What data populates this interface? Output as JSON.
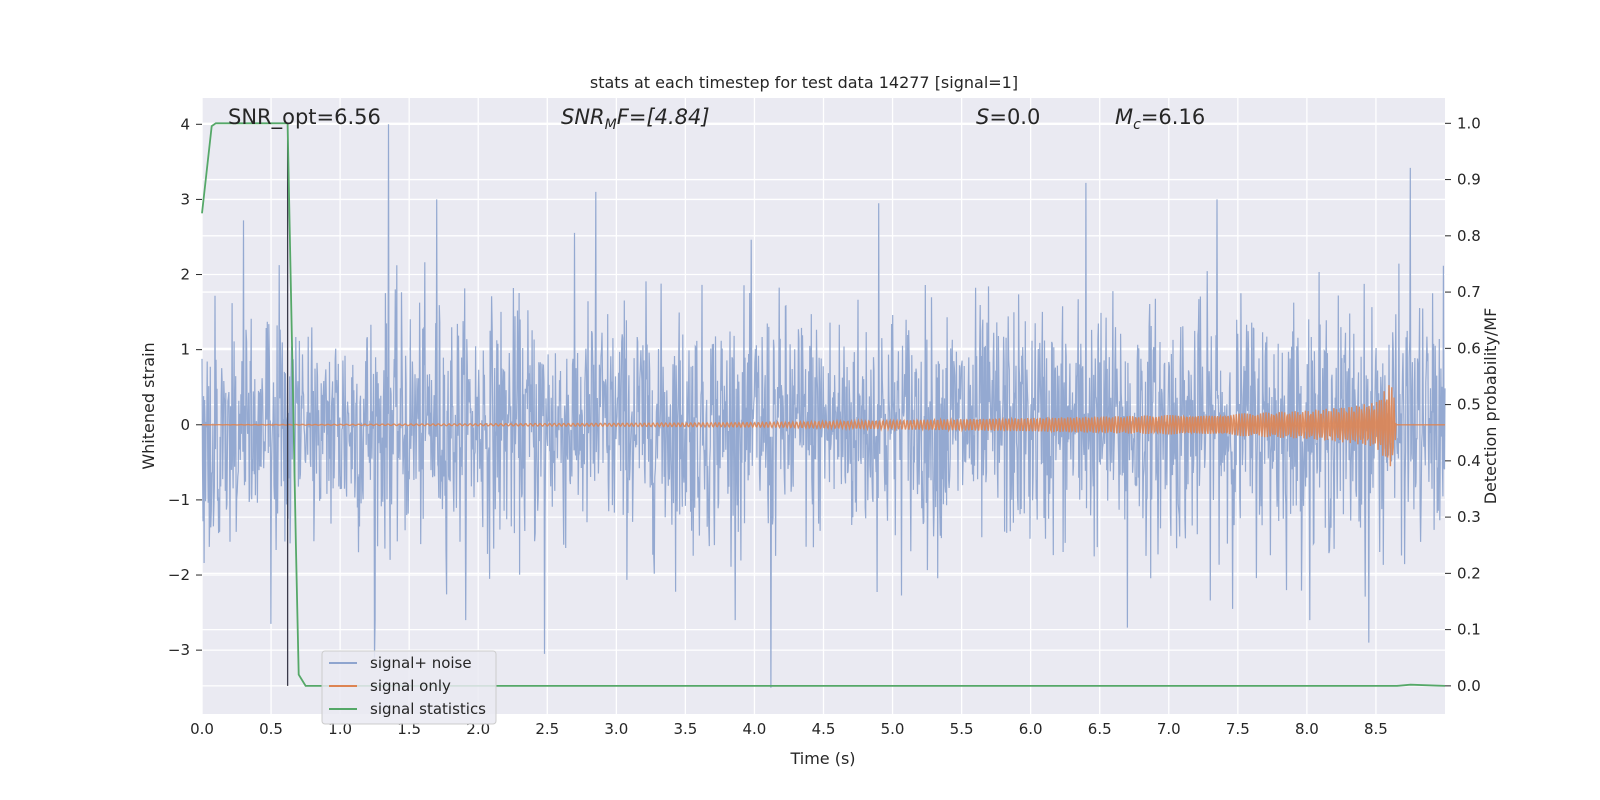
{
  "chart_data": {
    "type": "line",
    "title": "stats at each timestep for test data 14277 [signal=1]",
    "xlabel": "Time (s)",
    "ylabel": "Whitened strain",
    "ylabel_right": "Detection probability/MF",
    "xlim": [
      0.0,
      9.0
    ],
    "ylim": [
      -3.85,
      4.35
    ],
    "ylim_right": [
      -0.05,
      1.045
    ],
    "x_ticks": [
      0.0,
      0.5,
      1.0,
      1.5,
      2.0,
      2.5,
      3.0,
      3.5,
      4.0,
      4.5,
      5.0,
      5.5,
      6.0,
      6.5,
      7.0,
      7.5,
      8.0,
      8.5
    ],
    "x_tick_labels": [
      "0.0",
      "0.5",
      "1.0",
      "1.5",
      "2.0",
      "2.5",
      "3.0",
      "3.5",
      "4.0",
      "4.5",
      "5.0",
      "5.5",
      "6.0",
      "6.5",
      "7.0",
      "7.5",
      "8.0",
      "8.5"
    ],
    "y_ticks": [
      -3,
      -2,
      -1,
      0,
      1,
      2,
      3,
      4
    ],
    "y_tick_labels": [
      "−3",
      "−2",
      "−1",
      "0",
      "1",
      "2",
      "3",
      "4"
    ],
    "y_right_ticks": [
      0.0,
      0.1,
      0.2,
      0.3,
      0.4,
      0.5,
      0.6,
      0.7,
      0.8,
      0.9,
      1.0
    ],
    "y_right_tick_labels": [
      "0.0",
      "0.1",
      "0.2",
      "0.3",
      "0.4",
      "0.5",
      "0.6",
      "0.7",
      "0.8",
      "0.9",
      "1.0"
    ],
    "grid": true,
    "legend_position": "lower-left",
    "annotations": {
      "snr_opt": "SNR_opt=6.56",
      "snr_mf_main": "SNR",
      "snr_mf_sub": "M",
      "snr_mf_rest": "F=[4.84]",
      "s_main": "S",
      "s_rest": "=0.0",
      "mc_main": "M",
      "mc_sub": "c",
      "mc_rest": "=6.16"
    },
    "vertical_marker_x": 0.62,
    "series": [
      {
        "name": "signal+ noise",
        "color": "#8fa5cf",
        "axis": "left",
        "style": "dense noise, roughly ±1.3 core with spikes",
        "peaks": [
          {
            "x": 1.35,
            "y": 4.0
          },
          {
            "x": 8.75,
            "y": 3.42
          },
          {
            "x": 6.4,
            "y": 3.22
          },
          {
            "x": 2.85,
            "y": 3.1
          },
          {
            "x": 4.9,
            "y": 2.95
          },
          {
            "x": 1.7,
            "y": 3.0
          },
          {
            "x": 0.3,
            "y": 2.72
          },
          {
            "x": 7.35,
            "y": 3.0
          }
        ],
        "troughs": [
          {
            "x": 4.12,
            "y": -3.5
          },
          {
            "x": 1.25,
            "y": -3.1
          },
          {
            "x": 2.48,
            "y": -3.05
          },
          {
            "x": 8.45,
            "y": -2.9
          },
          {
            "x": 0.5,
            "y": -2.65
          },
          {
            "x": 6.7,
            "y": -2.7
          }
        ]
      },
      {
        "name": "signal only",
        "color": "#dd8452",
        "axis": "left",
        "style": "chirp, amplitude grows toward merger",
        "points": [
          [
            0.0,
            0.0
          ],
          [
            3.0,
            0.02
          ],
          [
            4.0,
            0.03
          ],
          [
            5.0,
            0.06
          ],
          [
            6.0,
            0.09
          ],
          [
            7.0,
            0.13
          ],
          [
            7.5,
            0.15
          ],
          [
            8.0,
            0.19
          ],
          [
            8.3,
            0.24
          ],
          [
            8.5,
            0.3
          ],
          [
            8.62,
            0.6
          ],
          [
            8.65,
            0.0
          ],
          [
            9.0,
            0.0
          ]
        ]
      },
      {
        "name": "signal statistics",
        "color": "#55a868",
        "axis": "right",
        "points": [
          [
            0.0,
            0.84
          ],
          [
            0.07,
            0.995
          ],
          [
            0.1,
            1.0
          ],
          [
            0.62,
            1.0
          ],
          [
            0.66,
            0.5
          ],
          [
            0.68,
            0.25
          ],
          [
            0.7,
            0.02
          ],
          [
            0.75,
            0.0
          ],
          [
            8.65,
            0.0
          ],
          [
            8.75,
            0.002
          ],
          [
            9.0,
            0.0
          ]
        ]
      }
    ]
  }
}
